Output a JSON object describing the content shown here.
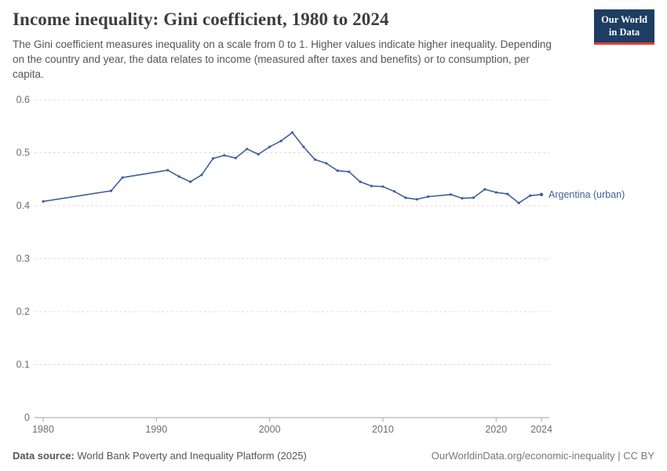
{
  "header": {
    "title": "Income inequality: Gini coefficient, 1980 to 2024",
    "subtitle": "The Gini coefficient measures inequality on a scale from 0 to 1. Higher values indicate higher inequality. Depending on the country and year, the data relates to income (measured after taxes and benefits) or to consumption, per capita.",
    "logo": {
      "line1": "Our World",
      "line2": "in Data"
    }
  },
  "footer": {
    "datasource_label": "Data source:",
    "datasource_text": "World Bank Poverty and Inequality Platform (2025)",
    "credit": "OurWorldinData.org/economic-inequality | CC BY"
  },
  "colors": {
    "series_blue": "#3f5e9e",
    "logo_navy": "#1d3d63",
    "logo_red": "#e23d33",
    "gridline": "#dcdcdc",
    "baseline": "#a1a1a1",
    "tick_label": "#6e6e6e"
  },
  "chart_data": {
    "type": "line",
    "title": "Income inequality: Gini coefficient, 1980 to 2024",
    "xlabel": "",
    "ylabel": "",
    "xlim": [
      1980,
      2024
    ],
    "ylim": [
      0,
      0.6
    ],
    "yticks": [
      0,
      0.1,
      0.2,
      0.3,
      0.4,
      0.5,
      0.6
    ],
    "ytick_labels": [
      "0",
      "0.1",
      "0.2",
      "0.3",
      "0.4",
      "0.5",
      "0.6"
    ],
    "xticks": [
      1980,
      1990,
      2000,
      2010,
      2020,
      2024
    ],
    "grid": "horizontal-dashed",
    "legend_position": "end-of-line",
    "series": [
      {
        "name": "Argentina (urban)",
        "color": "#3f5e9e",
        "x": [
          1980,
          1986,
          1987,
          1991,
          1992,
          1993,
          1994,
          1995,
          1996,
          1997,
          1998,
          1999,
          2000,
          2001,
          2002,
          2003,
          2004,
          2005,
          2006,
          2007,
          2008,
          2009,
          2010,
          2011,
          2012,
          2013,
          2014,
          2016,
          2017,
          2018,
          2019,
          2020,
          2021,
          2022,
          2023,
          2024
        ],
        "values": [
          0.408,
          0.428,
          0.453,
          0.467,
          0.455,
          0.445,
          0.458,
          0.489,
          0.495,
          0.49,
          0.507,
          0.497,
          0.511,
          0.522,
          0.538,
          0.511,
          0.487,
          0.48,
          0.466,
          0.464,
          0.445,
          0.437,
          0.436,
          0.427,
          0.415,
          0.412,
          0.417,
          0.421,
          0.414,
          0.415,
          0.431,
          0.425,
          0.422,
          0.405,
          0.419,
          0.421
        ]
      }
    ]
  }
}
